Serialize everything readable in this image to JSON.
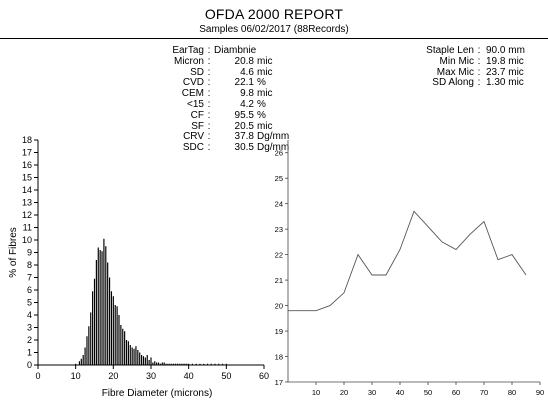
{
  "report": {
    "title": "OFDA 2000 REPORT",
    "subtitle": "Samples 06/02/2017 (88Records)"
  },
  "stats_left": [
    {
      "label": "EarTag",
      "value": "Diambnie",
      "unit": ""
    },
    {
      "label": "Micron",
      "value": "20.8",
      "unit": "mic"
    },
    {
      "label": "SD",
      "value": "4.6",
      "unit": "mic"
    },
    {
      "label": "CVD",
      "value": "22.1",
      "unit": "%"
    },
    {
      "label": "CEM",
      "value": "9.8",
      "unit": "mic"
    },
    {
      "label": "<15",
      "value": "4.2",
      "unit": "%"
    },
    {
      "label": "CF",
      "value": "95.5",
      "unit": "%"
    },
    {
      "label": "SF",
      "value": "20.5",
      "unit": "mic"
    },
    {
      "label": "CRV",
      "value": "37.8",
      "unit": "Dg/mm"
    },
    {
      "label": "SDC",
      "value": "30.5",
      "unit": "Dg/mm"
    }
  ],
  "stats_right": [
    {
      "label": "Staple Len",
      "value": "90.0 mm"
    },
    {
      "label": "Min Mic",
      "value": "19.8 mic"
    },
    {
      "label": "Max Mic",
      "value": "23.7 mic"
    },
    {
      "label": "SD Along",
      "value": "1.30 mic"
    }
  ],
  "chart_data": [
    {
      "type": "bar",
      "xlabel": "Fibre Diameter (microns)",
      "ylabel": "% of Fibres",
      "xlim": [
        0,
        60
      ],
      "ylim": [
        0,
        18
      ],
      "xticks": [
        0,
        10,
        20,
        30,
        40,
        50,
        60
      ],
      "yticks": [
        0,
        1,
        2,
        3,
        4,
        5,
        6,
        7,
        8,
        9,
        10,
        11,
        12,
        13,
        14,
        15,
        16,
        17,
        18
      ],
      "bar_color": "#000000",
      "bin_width": 0.5,
      "x": [
        10,
        11,
        11.5,
        12,
        12.5,
        13,
        13.5,
        14,
        14.5,
        15,
        15.5,
        16,
        16.5,
        17,
        17.5,
        18,
        18.5,
        19,
        19.5,
        20,
        20.5,
        21,
        21.5,
        22,
        22.5,
        23,
        23.5,
        24,
        24.5,
        25,
        25.5,
        26,
        26.5,
        27,
        27.5,
        28,
        28.5,
        29,
        29.5,
        30,
        30.5,
        31,
        31.5,
        32,
        32.5,
        33,
        33.5,
        34,
        34.5,
        35,
        35.5,
        36,
        36.5,
        37,
        37.5,
        38,
        38.5,
        39,
        39.5,
        40,
        41,
        42,
        43,
        44,
        45,
        46,
        47,
        48,
        49,
        50
      ],
      "values": [
        0.1,
        0.3,
        0.5,
        0.8,
        1.4,
        2.3,
        3.1,
        4.2,
        5.9,
        6.9,
        8.4,
        9.4,
        9.2,
        9.1,
        10.1,
        9.5,
        8.2,
        7.0,
        5.9,
        5.5,
        4.8,
        4.7,
        4.0,
        3.2,
        2.9,
        2.7,
        2.0,
        1.9,
        1.6,
        1.4,
        1.3,
        1.5,
        1.2,
        1.0,
        0.8,
        0.7,
        0.6,
        0.8,
        0.4,
        0.6,
        0.2,
        0.3,
        0.2,
        0.2,
        0.1,
        0.2,
        0.2,
        0.1,
        0.1,
        0.1,
        0.1,
        0.1,
        0.1,
        0.1,
        0.1,
        0.1,
        0.1,
        0.1,
        0.1,
        0.1,
        0.1,
        0.1,
        0.1,
        0.1,
        0.1,
        0.1,
        0.1,
        0.1,
        0.1,
        0.1
      ]
    },
    {
      "type": "line",
      "xlim": [
        0,
        90
      ],
      "ylim": [
        17,
        26.5
      ],
      "xticks": [
        10,
        20,
        30,
        40,
        50,
        60,
        70,
        80,
        90
      ],
      "yticks": [
        17,
        18,
        19,
        20,
        21,
        22,
        23,
        24,
        25,
        26
      ],
      "line_color": "#555555",
      "x": [
        0,
        10,
        15,
        20,
        25,
        30,
        35,
        40,
        45,
        50,
        55,
        60,
        65,
        70,
        75,
        80,
        85
      ],
      "y": [
        19.8,
        19.8,
        20.0,
        20.5,
        22.0,
        21.2,
        21.2,
        22.2,
        23.7,
        23.1,
        22.5,
        22.2,
        22.8,
        23.3,
        21.8,
        22.0,
        21.2
      ]
    }
  ]
}
